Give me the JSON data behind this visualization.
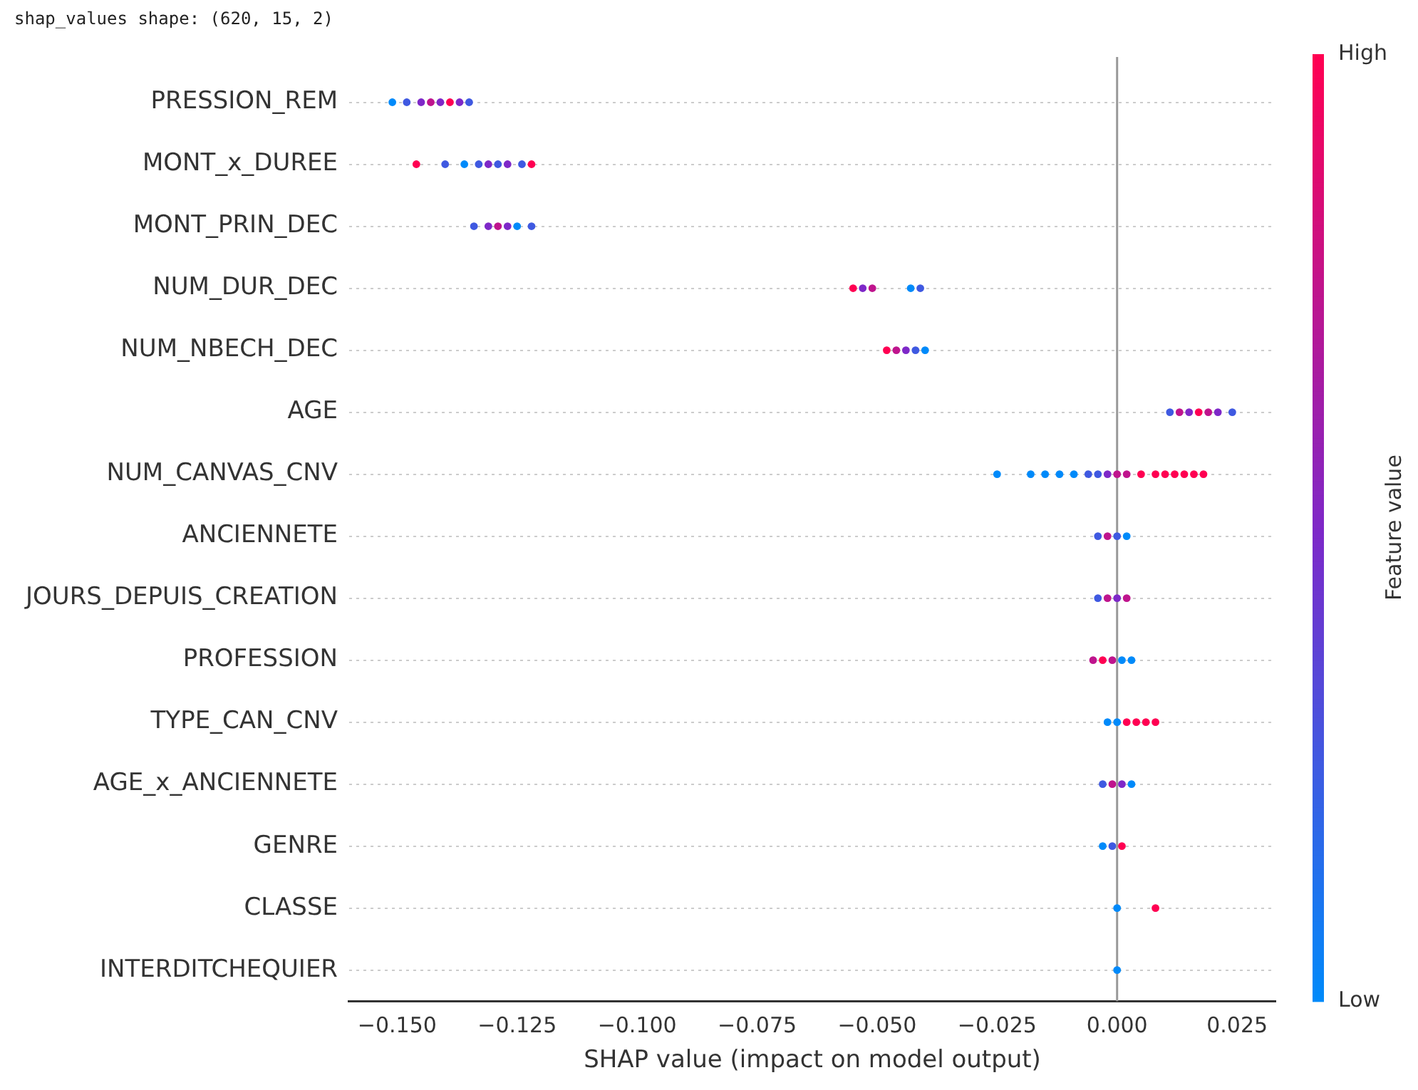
{
  "chart_data": {
    "type": "scatter",
    "orientation": "horizontal",
    "title": "shap_values shape: (620, 15, 2)",
    "xlabel": "SHAP value (impact on model output)",
    "clabel": "Feature value",
    "categories": [
      "PRESSION_REM",
      "MONT_x_DUREE",
      "MONT_PRIN_DEC",
      "NUM_DUR_DEC",
      "NUM_NBECH_DEC",
      "AGE",
      "NUM_CANVAS_CNV",
      "ANCIENNETE",
      "JOURS_DEPUIS_CREATION",
      "PROFESSION",
      "TYPE_CAN_CNV",
      "AGE_x_ANCIENNETE",
      "GENRE",
      "CLASSE",
      "INTERDITCHEQUIER"
    ],
    "series": [
      {
        "x": [
          "PRESSION_REM",
          "PRESSION_REM",
          "PRESSION_REM",
          "PRESSION_REM",
          "PRESSION_REM",
          "PRESSION_REM",
          "PRESSION_REM",
          "PRESSION_REM",
          "MONT_x_DUREE",
          "MONT_x_DUREE",
          "MONT_x_DUREE",
          "MONT_x_DUREE",
          "MONT_x_DUREE",
          "MONT_x_DUREE",
          "MONT_x_DUREE",
          "MONT_x_DUREE",
          "MONT_x_DUREE",
          "MONT_PRIN_DEC",
          "MONT_PRIN_DEC",
          "MONT_PRIN_DEC",
          "MONT_PRIN_DEC",
          "MONT_PRIN_DEC",
          "MONT_PRIN_DEC",
          "NUM_DUR_DEC",
          "NUM_DUR_DEC",
          "NUM_DUR_DEC",
          "NUM_DUR_DEC",
          "NUM_DUR_DEC",
          "NUM_NBECH_DEC",
          "NUM_NBECH_DEC",
          "NUM_NBECH_DEC",
          "NUM_NBECH_DEC",
          "NUM_NBECH_DEC",
          "AGE",
          "AGE",
          "AGE",
          "AGE",
          "AGE",
          "AGE",
          "AGE",
          "NUM_CANVAS_CNV",
          "NUM_CANVAS_CNV",
          "NUM_CANVAS_CNV",
          "NUM_CANVAS_CNV",
          "NUM_CANVAS_CNV",
          "NUM_CANVAS_CNV",
          "NUM_CANVAS_CNV",
          "NUM_CANVAS_CNV",
          "NUM_CANVAS_CNV",
          "NUM_CANVAS_CNV",
          "NUM_CANVAS_CNV",
          "NUM_CANVAS_CNV",
          "NUM_CANVAS_CNV",
          "NUM_CANVAS_CNV",
          "NUM_CANVAS_CNV",
          "NUM_CANVAS_CNV",
          "NUM_CANVAS_CNV",
          "ANCIENNETE",
          "ANCIENNETE",
          "ANCIENNETE",
          "ANCIENNETE",
          "JOURS_DEPUIS_CREATION",
          "JOURS_DEPUIS_CREATION",
          "JOURS_DEPUIS_CREATION",
          "JOURS_DEPUIS_CREATION",
          "PROFESSION",
          "PROFESSION",
          "PROFESSION",
          "PROFESSION",
          "PROFESSION",
          "TYPE_CAN_CNV",
          "TYPE_CAN_CNV",
          "TYPE_CAN_CNV",
          "TYPE_CAN_CNV",
          "TYPE_CAN_CNV",
          "TYPE_CAN_CNV",
          "AGE_x_ANCIENNETE",
          "AGE_x_ANCIENNETE",
          "AGE_x_ANCIENNETE",
          "AGE_x_ANCIENNETE",
          "GENRE",
          "GENRE",
          "GENRE",
          "CLASSE",
          "CLASSE",
          "INTERDITCHEQUIER"
        ],
        "values": [
          -0.151,
          -0.148,
          -0.145,
          -0.143,
          -0.141,
          -0.139,
          -0.137,
          -0.135,
          -0.146,
          -0.14,
          -0.136,
          -0.133,
          -0.131,
          -0.129,
          -0.127,
          -0.124,
          -0.122,
          -0.134,
          -0.131,
          -0.129,
          -0.127,
          -0.125,
          -0.122,
          -0.055,
          -0.053,
          -0.051,
          -0.043,
          -0.041,
          -0.048,
          -0.046,
          -0.044,
          -0.042,
          -0.04,
          0.011,
          0.013,
          0.015,
          0.017,
          0.019,
          0.021,
          0.024,
          -0.025,
          -0.018,
          -0.015,
          -0.012,
          -0.009,
          -0.006,
          -0.004,
          -0.002,
          0,
          0.002,
          0.005,
          0.008,
          0.01,
          0.012,
          0.014,
          0.016,
          0.018,
          -0.004,
          -0.002,
          0,
          0.002,
          -0.004,
          -0.002,
          0,
          0.002,
          -0.005,
          -0.003,
          -0.001,
          0.001,
          0.003,
          -0.002,
          0,
          0.002,
          0.004,
          0.006,
          0.008,
          -0.003,
          -0.001,
          0.001,
          0.003,
          -0.003,
          -0.001,
          0.001,
          0,
          0.008,
          0
        ],
        "cvalues": [
          0,
          0.25,
          0.5,
          0.75,
          0.5,
          1,
          0.5,
          0.25,
          1,
          0.25,
          0,
          0.25,
          0.5,
          0.25,
          0.5,
          0.25,
          1,
          0.25,
          0.5,
          0.75,
          0.5,
          0,
          0.25,
          1,
          0.5,
          0.75,
          0,
          0.25,
          1,
          0.75,
          0.5,
          0.25,
          0,
          0.25,
          0.75,
          0.5,
          1,
          0.75,
          0.5,
          0.25,
          0,
          0,
          0,
          0,
          0,
          0.25,
          0.25,
          0.5,
          0.75,
          0.75,
          1,
          1,
          1,
          1,
          1,
          1,
          1,
          0.25,
          0.75,
          0.25,
          0,
          0.25,
          0.75,
          0.5,
          0.75,
          0.75,
          1,
          0.75,
          0,
          0,
          0,
          0,
          1,
          1,
          1,
          1,
          0.25,
          0.75,
          0.5,
          0,
          0,
          0.25,
          1,
          0,
          1,
          0
        ]
      }
    ],
    "xlim": [
      -0.16,
      0.033
    ],
    "xticks": [
      {
        "value": -0.15,
        "label": "−0.150"
      },
      {
        "value": -0.125,
        "label": "−0.125"
      },
      {
        "value": -0.1,
        "label": "−0.100"
      },
      {
        "value": -0.075,
        "label": "−0.075"
      },
      {
        "value": -0.05,
        "label": "−0.050"
      },
      {
        "value": -0.025,
        "label": "−0.025"
      },
      {
        "value": 0,
        "label": "0.000"
      },
      {
        "value": 0.025,
        "label": "0.025"
      }
    ],
    "clim": [
      0,
      1
    ],
    "cticks": [
      {
        "value": 0,
        "label": "Low"
      },
      {
        "value": 1,
        "label": "High"
      }
    ],
    "ref_lines": [
      {
        "axis": "x",
        "value": 0,
        "color": "#999999"
      }
    ],
    "grid": "y",
    "legend": false,
    "marker": "circle"
  }
}
